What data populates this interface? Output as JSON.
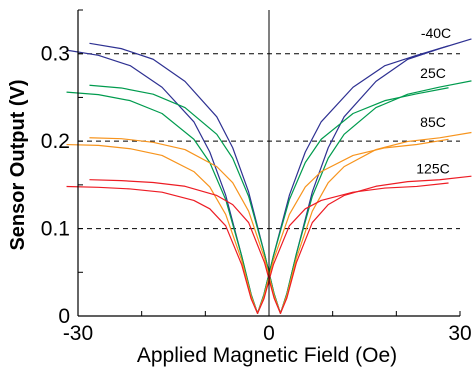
{
  "chart_data": {
    "type": "line",
    "title": "",
    "xlabel": "Applied Magnetic Field (Oe)",
    "ylabel": "Sensor Output (V)",
    "xlim": [
      -30,
      30
    ],
    "ylim": [
      0,
      0.35
    ],
    "x_ticks": [
      -30,
      0,
      30
    ],
    "x_tick_labels": [
      "-30",
      "0",
      "30"
    ],
    "y_ticks": [
      0,
      0.1,
      0.2,
      0.3
    ],
    "y_tick_labels": [
      "0",
      "0.1",
      "0.2",
      "0.3"
    ],
    "reference_lines_y": [
      0.1,
      0.2,
      0.3
    ],
    "grid": false,
    "x": [
      -30,
      -25,
      -20,
      -15,
      -10,
      -7.5,
      -5,
      -2.5,
      -1,
      0,
      1,
      2.5,
      5,
      7.5,
      10,
      15,
      20,
      25,
      30
    ],
    "series": [
      {
        "name": "-40C",
        "color": "#2e3192",
        "values": [
          0.308,
          0.302,
          0.29,
          0.265,
          0.225,
          0.19,
          0.14,
          0.07,
          0.025,
          0.003,
          0.025,
          0.07,
          0.14,
          0.19,
          0.225,
          0.265,
          0.29,
          0.302,
          0.313
        ]
      },
      {
        "name": "25C",
        "color": "#009b4e",
        "values": [
          0.26,
          0.257,
          0.25,
          0.235,
          0.205,
          0.178,
          0.135,
          0.07,
          0.025,
          0.003,
          0.025,
          0.07,
          0.135,
          0.178,
          0.205,
          0.235,
          0.25,
          0.258,
          0.265
        ]
      },
      {
        "name": "85C",
        "color": "#f7941d",
        "values": [
          0.2,
          0.199,
          0.195,
          0.187,
          0.168,
          0.15,
          0.118,
          0.065,
          0.023,
          0.003,
          0.023,
          0.065,
          0.118,
          0.15,
          0.168,
          0.187,
          0.196,
          0.2,
          0.206
        ]
      },
      {
        "name": "125C",
        "color": "#ed1c24",
        "values": [
          0.152,
          0.151,
          0.149,
          0.145,
          0.135,
          0.125,
          0.105,
          0.06,
          0.02,
          0.003,
          0.02,
          0.06,
          0.105,
          0.125,
          0.135,
          0.145,
          0.15,
          0.152,
          0.156
        ]
      }
    ]
  }
}
